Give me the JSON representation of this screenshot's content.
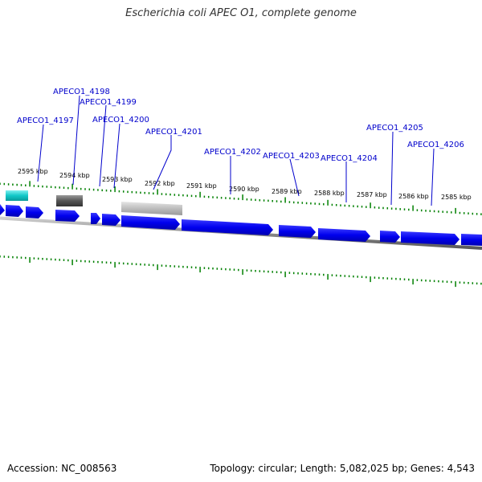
{
  "title": "Escherichia coli APEC O1, complete genome",
  "footer": {
    "accession": "Accession: NC_008563",
    "summary": "Topology: circular; Length: 5,082,025 bp; Genes: 4,543"
  },
  "colors": {
    "gene": "#0000ee",
    "label": "#0000cc",
    "tick": "#008000",
    "backbone": "#888888"
  },
  "kbp_ticks": [
    {
      "label": "2595 kbp"
    },
    {
      "label": "2594 kbp"
    },
    {
      "label": "2593 kbp"
    },
    {
      "label": "2592 kbp"
    },
    {
      "label": "2591 kbp"
    },
    {
      "label": "2590 kbp"
    },
    {
      "label": "2589 kbp"
    },
    {
      "label": "2588 kbp"
    },
    {
      "label": "2587 kbp"
    },
    {
      "label": "2586 kbp"
    },
    {
      "label": "2585 kbp"
    }
  ],
  "gene_labels": [
    {
      "name": "APECO1_4197"
    },
    {
      "name": "APECO1_4198"
    },
    {
      "name": "APECO1_4199"
    },
    {
      "name": "APECO1_4200"
    },
    {
      "name": "APECO1_4201"
    },
    {
      "name": "APECO1_4202"
    },
    {
      "name": "APECO1_4203"
    },
    {
      "name": "APECO1_4204"
    },
    {
      "name": "APECO1_4205"
    },
    {
      "name": "APECO1_4206"
    }
  ]
}
